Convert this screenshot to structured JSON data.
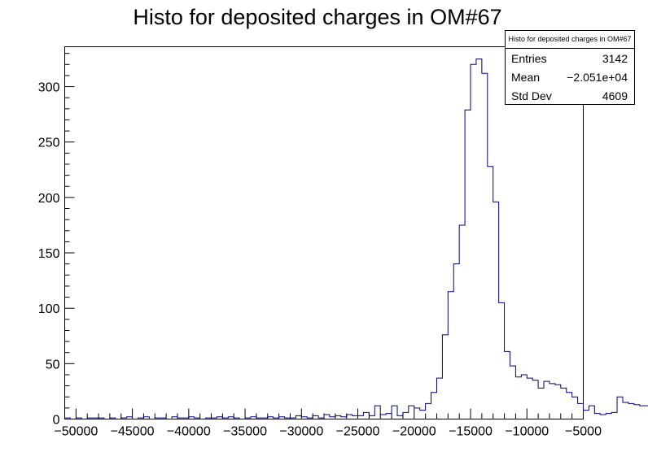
{
  "chart_data": {
    "type": "histogram",
    "title": "Histo for deposited charges in OM#67",
    "xlabel": "",
    "ylabel": "",
    "xlim": [
      -51000,
      -5000
    ],
    "ylim": [
      0,
      336
    ],
    "bin_width": 500,
    "bin_start": -51000,
    "x_ticks": [
      -50000,
      -45000,
      -40000,
      -35000,
      -30000,
      -25000,
      -20000,
      -15000,
      -10000,
      -5000
    ],
    "x_tick_labels": [
      "−50000",
      "−45000",
      "−40000",
      "−35000",
      "−30000",
      "−25000",
      "−20000",
      "−15000",
      "−10000",
      "−5000"
    ],
    "y_ticks": [
      0,
      50,
      100,
      150,
      200,
      250,
      300
    ],
    "y_tick_labels": [
      "0",
      "50",
      "100",
      "150",
      "200",
      "250",
      "300"
    ],
    "line_color": "#000080",
    "grid": false,
    "legend": "none",
    "values": [
      1,
      0,
      1,
      0,
      1,
      1,
      1,
      0,
      1,
      0,
      1,
      2,
      0,
      1,
      2,
      0,
      1,
      1,
      0,
      2,
      1,
      1,
      2,
      1,
      0,
      1,
      1,
      2,
      1,
      2,
      1,
      0,
      1,
      2,
      1,
      1,
      2,
      1,
      2,
      1,
      1,
      3,
      2,
      1,
      3,
      1,
      4,
      2,
      3,
      2,
      4,
      3,
      3,
      6,
      3,
      12,
      4,
      5,
      12,
      3,
      6,
      12,
      10,
      8,
      14,
      24,
      37,
      76,
      115,
      140,
      175,
      279,
      320,
      325,
      312,
      228,
      196,
      105,
      61,
      48,
      38,
      40,
      37,
      35,
      28,
      34,
      32,
      31,
      28,
      24,
      20,
      14,
      8,
      12,
      5,
      4,
      5,
      6,
      20,
      15,
      14,
      13,
      12,
      12,
      10,
      8,
      6,
      12,
      10,
      7
    ]
  },
  "stats_box": {
    "title": "Histo for deposited charges in OM#67",
    "rows": [
      {
        "label": "Entries",
        "value": "3142"
      },
      {
        "label": "Mean",
        "value": "−2.051e+04"
      },
      {
        "label": "Std Dev",
        "value": "4609"
      }
    ]
  }
}
